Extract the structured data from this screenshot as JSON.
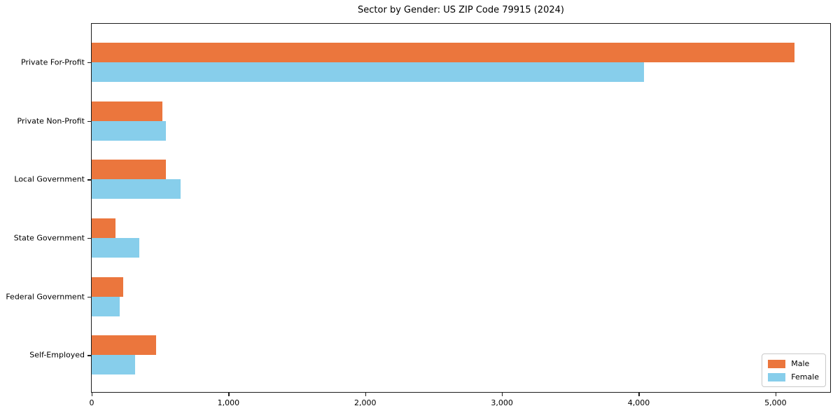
{
  "chart_data": {
    "type": "bar",
    "orientation": "horizontal",
    "title": "Sector by Gender: US ZIP Code 79915 (2024)",
    "categories": [
      "Private For-Profit",
      "Private Non-Profit",
      "Local Government",
      "State Government",
      "Federal Government",
      "Self-Employed"
    ],
    "series": [
      {
        "name": "Male",
        "color": "#eb763d",
        "values": [
          5140,
          515,
          545,
          175,
          230,
          470
        ]
      },
      {
        "name": "Female",
        "color": "#87ceeb",
        "values": [
          4040,
          540,
          650,
          350,
          205,
          315
        ]
      }
    ],
    "xlabel": "",
    "ylabel": "",
    "xlim": [
      0,
      5400
    ],
    "xticks": [
      0,
      1000,
      2000,
      3000,
      4000,
      5000
    ],
    "xtick_labels": [
      "0",
      "1,000",
      "2,000",
      "3,000",
      "4,000",
      "5,000"
    ],
    "grid": false,
    "legend": {
      "position": "lower right",
      "entries": [
        "Male",
        "Female"
      ]
    },
    "colors": {
      "axis": "#1c1c1c",
      "background": "#ffffff"
    }
  }
}
